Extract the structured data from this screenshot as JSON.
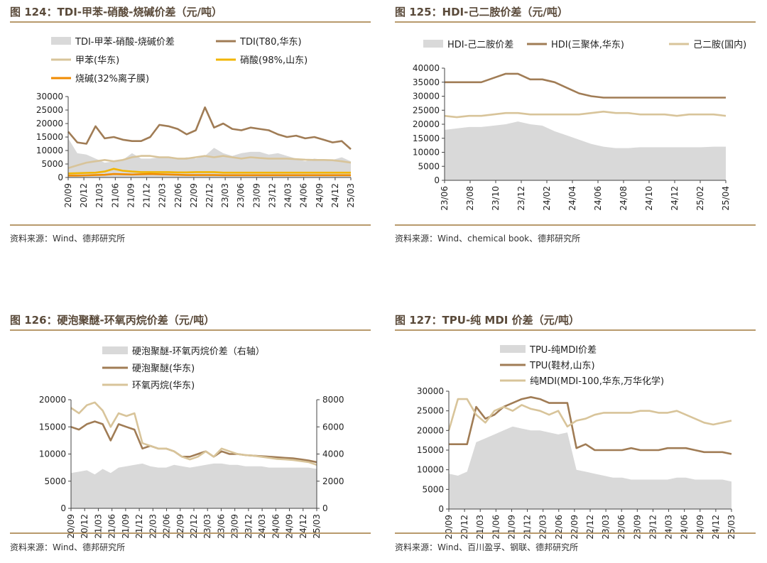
{
  "colors": {
    "accent": "#9b7a52",
    "rule": "#b89a6c",
    "area": "#d9d9d9",
    "dark": "#a07c55",
    "light": "#d8c49a",
    "yellow": "#f2b500",
    "orange": "#f08b00"
  },
  "chart_data": [
    {
      "id": "c124",
      "type": "line",
      "title": "图 124：TDI-甲苯-硝酸-烧碱价差（元/吨）",
      "source": "资料来源：Wind、德邦研究所",
      "xlabels": [
        "20/09",
        "20/12",
        "21/03",
        "21/06",
        "21/09",
        "21/12",
        "22/03",
        "22/06",
        "22/09",
        "22/12",
        "23/03",
        "23/06",
        "23/09",
        "23/12",
        "24/03",
        "24/06",
        "24/09",
        "24/12",
        "25/03"
      ],
      "ylim": [
        0,
        30000
      ],
      "yticks": [
        0,
        5000,
        10000,
        15000,
        20000,
        25000,
        30000
      ],
      "series": [
        {
          "name": "TDI-甲苯-硝酸-烧碱价差",
          "kind": "area",
          "color": "#d9d9d9",
          "values": [
            14500,
            9000,
            8500,
            7000,
            5500,
            6000,
            6500,
            9000,
            7000,
            7000,
            7500,
            7200,
            6800,
            7500,
            7000,
            8000,
            11000,
            9000,
            8000,
            9000,
            9500,
            9500,
            8500,
            9000,
            8000,
            7000,
            6000,
            7000,
            6500,
            6500,
            7500,
            6000
          ]
        },
        {
          "name": "TDI(T80,华东)",
          "kind": "line",
          "color": "#a07c55",
          "values": [
            17000,
            13000,
            12500,
            19000,
            14500,
            15000,
            14000,
            13500,
            13500,
            15000,
            19500,
            19000,
            18000,
            16000,
            17500,
            26000,
            18500,
            20000,
            18000,
            17500,
            18500,
            18000,
            17500,
            16000,
            15000,
            15500,
            14500,
            15000,
            14000,
            13000,
            13500,
            10500
          ]
        },
        {
          "name": "甲苯(华东)",
          "kind": "line",
          "color": "#d8c49a",
          "values": [
            3500,
            4500,
            5500,
            6000,
            6500,
            6000,
            6500,
            7500,
            8000,
            8000,
            7500,
            7500,
            7000,
            7000,
            7500,
            8000,
            7500,
            8000,
            7500,
            7000,
            7500,
            7200,
            7000,
            7000,
            7000,
            6800,
            6600,
            6500,
            6500,
            6400,
            6000,
            5500
          ]
        },
        {
          "name": "硝酸(98%,山东)",
          "kind": "line",
          "color": "#f2b500",
          "values": [
            1500,
            1600,
            1700,
            1800,
            2200,
            3200,
            2500,
            2200,
            2000,
            2000,
            2000,
            2000,
            1900,
            1900,
            2000,
            2000,
            2000,
            1800,
            1800,
            1800,
            1800,
            1800,
            1800,
            1800,
            1800,
            1800,
            1800,
            1800,
            1800,
            1800,
            1800,
            1800
          ]
        },
        {
          "name": "烧碱(32%离子膜)",
          "kind": "line",
          "color": "#f08b00",
          "values": [
            700,
            700,
            800,
            900,
            1000,
            1300,
            1200,
            1100,
            1200,
            1300,
            1200,
            1100,
            1000,
            900,
            900,
            900,
            900,
            850,
            850,
            850,
            850,
            850,
            850,
            850,
            850,
            850,
            850,
            850,
            850,
            850,
            850,
            850
          ]
        }
      ]
    },
    {
      "id": "c125",
      "type": "line",
      "title": "图 125：HDI-己二胺价差（元/吨）",
      "source": "资料来源：Wind、chemical book、德邦研究所",
      "xlabels": [
        "23/06",
        "23/08",
        "23/10",
        "23/12",
        "24/02",
        "24/04",
        "24/06",
        "24/08",
        "24/10",
        "24/12",
        "25/02",
        "25/04"
      ],
      "ylim": [
        0,
        40000
      ],
      "yticks": [
        0,
        5000,
        10000,
        15000,
        20000,
        25000,
        30000,
        35000,
        40000
      ],
      "series": [
        {
          "name": "HDI-己二胺价差",
          "kind": "area",
          "color": "#d9d9d9",
          "values": [
            18000,
            18500,
            19000,
            19000,
            19500,
            20000,
            21000,
            20000,
            19500,
            17500,
            16000,
            14500,
            13000,
            12000,
            11500,
            11500,
            11800,
            11800,
            11800,
            11800,
            11800,
            11800,
            12000,
            12000
          ]
        },
        {
          "name": "HDI(三聚体,华东)",
          "kind": "line",
          "color": "#a07c55",
          "values": [
            35000,
            35000,
            35000,
            35000,
            36500,
            38000,
            38000,
            36000,
            36000,
            35000,
            33000,
            31000,
            30000,
            29500,
            29500,
            29500,
            29500,
            29500,
            29500,
            29500,
            29500,
            29500,
            29500,
            29500
          ]
        },
        {
          "name": "己二胺(国内)",
          "kind": "line",
          "color": "#d8c49a",
          "values": [
            23000,
            22500,
            23000,
            23000,
            23500,
            24000,
            24000,
            23500,
            23500,
            23500,
            23500,
            23500,
            24000,
            24500,
            24000,
            24000,
            23500,
            23500,
            23500,
            23000,
            23500,
            23500,
            23500,
            23000
          ]
        }
      ]
    },
    {
      "id": "c126",
      "type": "line",
      "title": "图 126：硬泡聚醚-环氧丙烷价差（元/吨）",
      "source": "资料来源：Wind、德邦研究所",
      "xlabels": [
        "20/09",
        "20/12",
        "21/03",
        "21/06",
        "21/09",
        "21/12",
        "22/03",
        "22/06",
        "22/09",
        "22/12",
        "23/03",
        "23/06",
        "23/09",
        "23/12",
        "24/03",
        "24/06",
        "24/09",
        "24/12",
        "25/03"
      ],
      "ylim": [
        0,
        20000
      ],
      "yticks": [
        0,
        5000,
        10000,
        15000,
        20000
      ],
      "y2lim": [
        0,
        8000
      ],
      "y2ticks": [
        0,
        2000,
        4000,
        6000,
        8000
      ],
      "series": [
        {
          "name": "硬泡聚醚-环氧丙烷价差（右轴）",
          "kind": "area",
          "axis": "right",
          "color": "#d9d9d9",
          "values": [
            2600,
            2700,
            2800,
            2500,
            2900,
            2600,
            3000,
            3100,
            3200,
            3300,
            3100,
            3000,
            3000,
            3200,
            3100,
            3000,
            3100,
            3200,
            3300,
            3300,
            3200,
            3200,
            3100,
            3100,
            3100,
            3000,
            3000,
            3000,
            3000,
            3000,
            3000,
            2900
          ]
        },
        {
          "name": "硬泡聚醚(华东)",
          "kind": "line",
          "color": "#a07c55",
          "values": [
            15000,
            14500,
            15500,
            16000,
            15500,
            12500,
            15500,
            15000,
            14500,
            11000,
            11500,
            11000,
            11000,
            10500,
            9500,
            9500,
            10000,
            10500,
            9500,
            10500,
            10000,
            10000,
            9800,
            9700,
            9600,
            9500,
            9400,
            9300,
            9200,
            9000,
            8800,
            8500
          ]
        },
        {
          "name": "环氧丙烷(华东)",
          "kind": "line",
          "color": "#d8c49a",
          "values": [
            18500,
            17500,
            19000,
            19500,
            18000,
            15000,
            17500,
            17000,
            17500,
            12000,
            11500,
            11000,
            11000,
            10500,
            9500,
            9000,
            9500,
            10500,
            9500,
            11000,
            10500,
            10000,
            9800,
            9700,
            9500,
            9300,
            9100,
            9000,
            8900,
            8700,
            8500,
            8000
          ]
        }
      ]
    },
    {
      "id": "c127",
      "type": "line",
      "title": "图 127：TPU-纯 MDI 价差（元/吨）",
      "source": "资料来源：Wind、百川盈孚、钢联、德邦研究所",
      "xlabels": [
        "20/09",
        "20/12",
        "21/03",
        "21/06",
        "21/09",
        "21/12",
        "22/03",
        "22/06",
        "22/09",
        "22/12",
        "23/03",
        "23/06",
        "23/09",
        "23/12",
        "24/03",
        "24/06",
        "24/09",
        "24/12",
        "25/03"
      ],
      "ylim": [
        0,
        30000
      ],
      "yticks": [
        0,
        5000,
        10000,
        15000,
        20000,
        25000,
        30000
      ],
      "series": [
        {
          "name": "TPU-纯MDI价差",
          "kind": "area",
          "color": "#d9d9d9",
          "values": [
            9000,
            8500,
            9500,
            17000,
            18000,
            19000,
            20000,
            21000,
            20500,
            20000,
            20000,
            19500,
            19000,
            19500,
            10000,
            9500,
            9000,
            8500,
            8000,
            8000,
            7500,
            7500,
            7500,
            7500,
            7500,
            8000,
            8000,
            7500,
            7500,
            7500,
            7500,
            7000
          ]
        },
        {
          "name": "TPU(鞋材,山东)",
          "kind": "line",
          "color": "#a07c55",
          "values": [
            16500,
            16500,
            16500,
            26000,
            23000,
            24000,
            26000,
            27000,
            28000,
            28500,
            28000,
            27000,
            27000,
            27000,
            15500,
            16500,
            15000,
            15000,
            15000,
            15000,
            15500,
            15000,
            15000,
            15000,
            15500,
            15500,
            15500,
            15000,
            14500,
            14500,
            14500,
            14000
          ]
        },
        {
          "name": "纯MDI(MDI-100,华东,万华化学)",
          "kind": "line",
          "color": "#d8c49a",
          "values": [
            20000,
            28000,
            28000,
            24000,
            22000,
            25000,
            26000,
            25000,
            26500,
            25500,
            25000,
            24000,
            25000,
            21000,
            22500,
            23000,
            24000,
            24500,
            24500,
            24500,
            24500,
            25000,
            25000,
            24500,
            24500,
            25000,
            24000,
            23000,
            22000,
            21500,
            22000,
            22500
          ]
        }
      ]
    }
  ]
}
